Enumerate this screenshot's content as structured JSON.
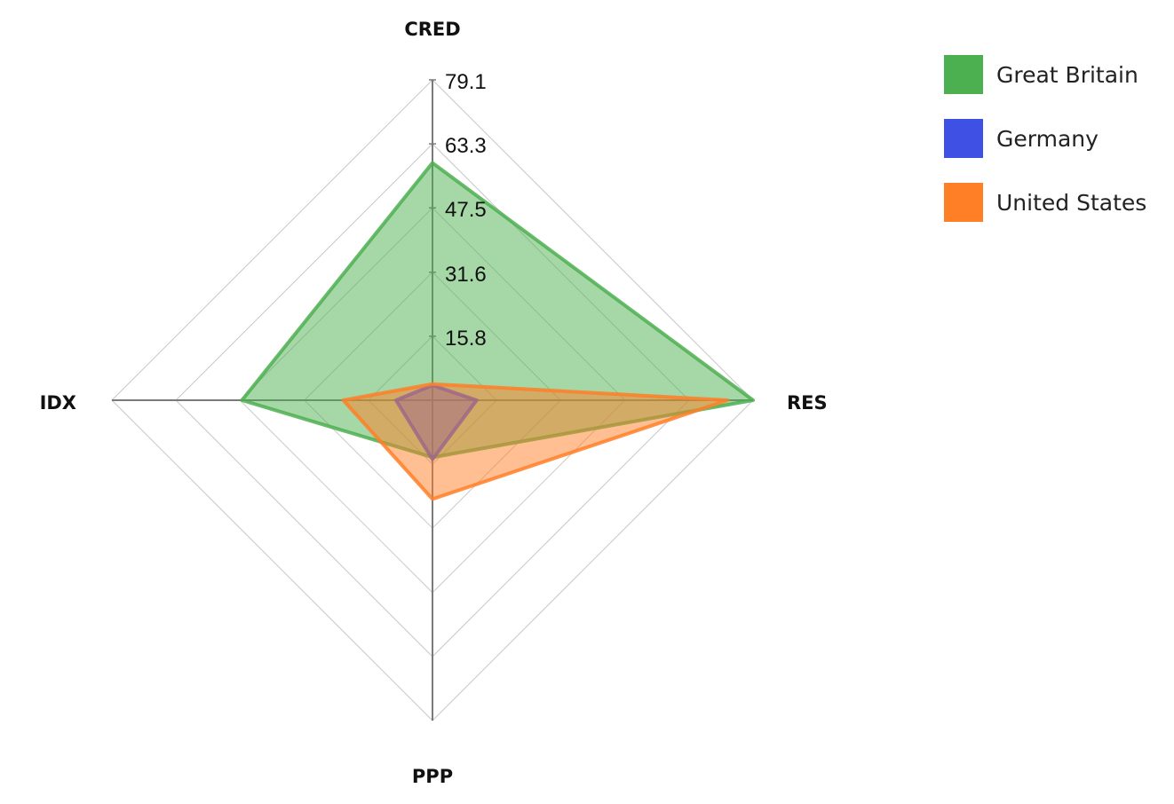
{
  "chart_data": {
    "type": "radar",
    "title": "",
    "axes": [
      "CRED",
      "RES",
      "PPP",
      "IDX"
    ],
    "ticks": [
      "15.8",
      "31.6",
      "47.5",
      "63.3",
      "79.1"
    ],
    "tick_values": [
      15.8,
      31.6,
      47.5,
      63.3,
      79.1
    ],
    "rmax": 79.1,
    "grid": true,
    "legend_position": "top-right",
    "series": [
      {
        "name": "Great Britain",
        "color": "#4caf50",
        "values": [
          58.6,
          79.1,
          14.1,
          47.0
        ]
      },
      {
        "name": "Germany",
        "color": "#3f51e5",
        "values": [
          3.7,
          10.9,
          14.6,
          9.0
        ]
      },
      {
        "name": "United States",
        "color": "#ff7f27",
        "values": [
          4.0,
          72.8,
          24.4,
          22.0
        ]
      }
    ]
  }
}
